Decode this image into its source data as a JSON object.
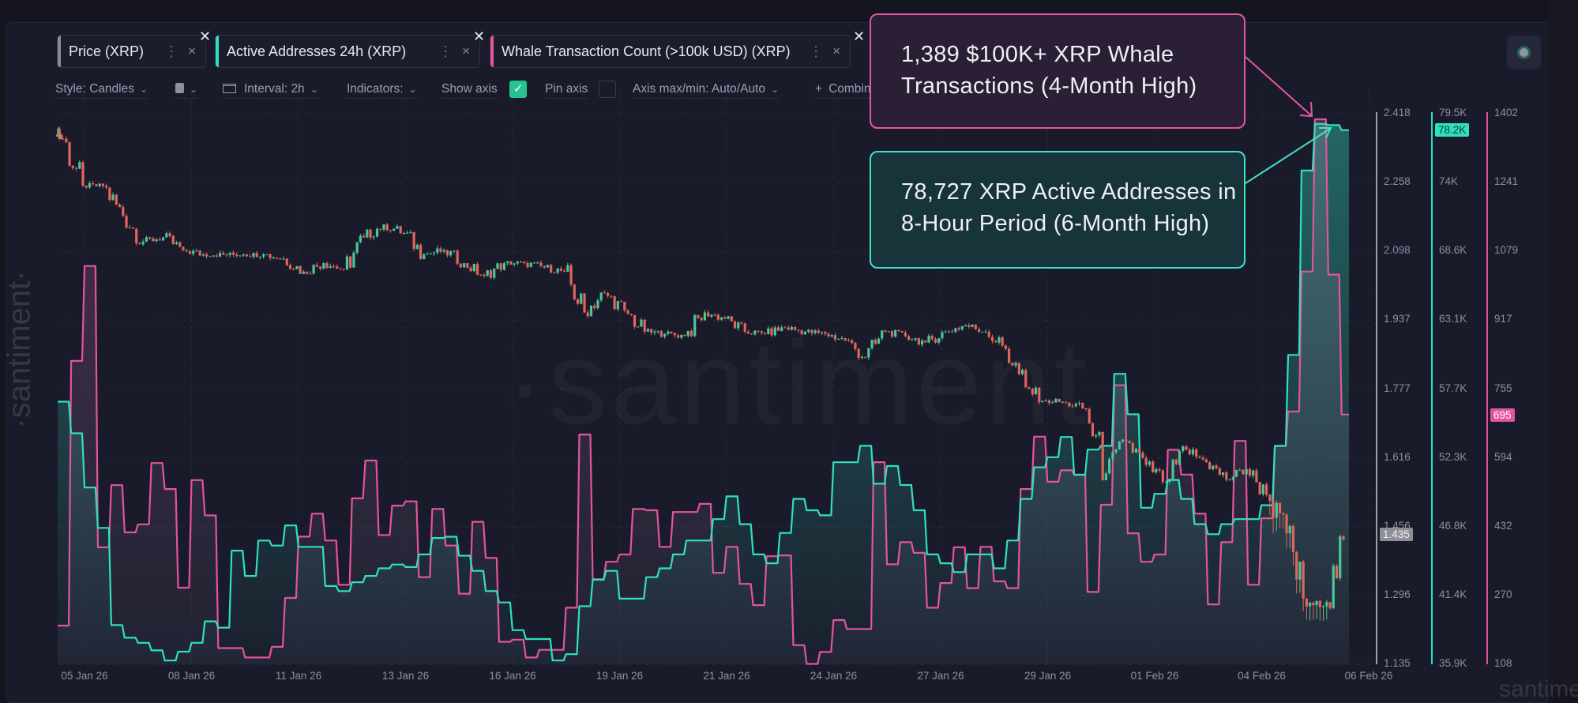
{
  "tabs": [
    {
      "label": "Price (XRP)",
      "color": "#8a8d99",
      "menu_icon": "more-vertical-icon",
      "close_icon": "close-icon"
    },
    {
      "label": "Active Addresses 24h (XRP)",
      "color": "#2fe0bf",
      "menu_icon": "more-vertical-icon",
      "close_icon": "close-icon"
    },
    {
      "label": "Whale Transaction Count (>100k USD) (XRP)",
      "color": "#e2559b",
      "menu_icon": "more-vertical-icon",
      "close_icon": "close-icon"
    }
  ],
  "toolbar": {
    "style": "Style: Candles",
    "interval": "Interval: 2h",
    "indicators": "Indicators:",
    "show_axis": "Show axis",
    "show_axis_checked": true,
    "pin_axis": "Pin axis",
    "pin_axis_checked": false,
    "axis_maxmin": "Axis max/min: Auto/Auto",
    "combine": "Combine"
  },
  "annotations": {
    "whale": {
      "line1": "1,389 $100K+ XRP Whale",
      "line2": "Transactions (4-Month High)",
      "color": "#e3579f"
    },
    "active": {
      "line1": "78,727 XRP Active Addresses in",
      "line2": "8-Hour Period (6-Month High)",
      "color": "#3fe3c3"
    }
  },
  "watermark": "·santiment",
  "side_watermark": "·santiment·",
  "corner_watermark": "santiment",
  "chart_data": {
    "type": "candlestick+step-line",
    "grid": true,
    "x_ticks": [
      "05 Jan 26",
      "08 Jan 26",
      "11 Jan 26",
      "13 Jan 26",
      "16 Jan 26",
      "19 Jan 26",
      "21 Jan 26",
      "24 Jan 26",
      "27 Jan 26",
      "29 Jan 26",
      "01 Feb 26",
      "04 Feb 26",
      "06 Feb 26"
    ],
    "axes": {
      "price": {
        "ticks": [
          "2.418",
          "2.258",
          "2.098",
          "1.937",
          "1.777",
          "1.616",
          "1.456",
          "1.296",
          "1.135"
        ],
        "range": [
          1.135,
          2.418
        ],
        "current": "1.435",
        "color": "#9a9cab"
      },
      "active": {
        "ticks": [
          "79.5K",
          "74K",
          "68.6K",
          "63.1K",
          "57.7K",
          "52.3K",
          "46.8K",
          "41.4K",
          "35.9K"
        ],
        "range": [
          35.9,
          79.5
        ],
        "current": "78.2K",
        "color": "#2fe0bf"
      },
      "whale": {
        "ticks": [
          "1402",
          "1241",
          "1079",
          "917",
          "755",
          "594",
          "432",
          "270",
          "108"
        ],
        "range": [
          108,
          1402
        ],
        "current": "695",
        "color": "#e2559b"
      }
    },
    "series": [
      {
        "name": "Price (XRP)",
        "type": "candles",
        "interval": "2h",
        "up_color": "#4cc59a",
        "down_color": "#e0665c",
        "x": [
          "2026-01-05T00:00",
          "2026-01-05T12:00",
          "2026-01-06T00:00",
          "2026-01-06T12:00",
          "2026-01-07T00:00",
          "2026-01-07T12:00",
          "2026-01-08T00:00",
          "2026-01-08T12:00",
          "2026-01-09T00:00",
          "2026-01-09T12:00",
          "2026-01-10T00:00",
          "2026-01-10T12:00",
          "2026-01-11T00:00",
          "2026-01-11T12:00",
          "2026-01-12T00:00",
          "2026-01-12T12:00",
          "2026-01-13T00:00",
          "2026-01-13T12:00",
          "2026-01-14T00:00",
          "2026-01-14T12:00",
          "2026-01-15T00:00",
          "2026-01-15T12:00",
          "2026-01-16T00:00",
          "2026-01-16T12:00",
          "2026-01-17T00:00",
          "2026-01-17T12:00",
          "2026-01-18T00:00",
          "2026-01-18T12:00",
          "2026-01-19T00:00",
          "2026-01-19T12:00",
          "2026-01-20T00:00",
          "2026-01-20T12:00",
          "2026-01-21T00:00",
          "2026-01-21T12:00",
          "2026-01-22T00:00",
          "2026-01-22T12:00",
          "2026-01-23T00:00",
          "2026-01-23T12:00",
          "2026-01-24T00:00",
          "2026-01-24T12:00",
          "2026-01-25T00:00",
          "2026-01-25T12:00",
          "2026-01-26T00:00",
          "2026-01-26T12:00",
          "2026-01-27T00:00",
          "2026-01-27T12:00",
          "2026-01-28T00:00",
          "2026-01-28T12:00",
          "2026-01-29T00:00",
          "2026-01-29T12:00",
          "2026-01-30T00:00",
          "2026-01-30T12:00",
          "2026-01-31T00:00",
          "2026-01-31T12:00",
          "2026-02-01T00:00",
          "2026-02-01T12:00",
          "2026-02-02T00:00",
          "2026-02-02T12:00",
          "2026-02-03T00:00",
          "2026-02-03T12:00",
          "2026-02-04T00:00",
          "2026-02-04T12:00",
          "2026-02-05T00:00",
          "2026-02-05T12:00",
          "2026-02-06T00:00"
        ],
        "close": [
          2.36,
          2.25,
          2.25,
          2.18,
          2.12,
          2.13,
          2.1,
          2.09,
          2.09,
          2.09,
          2.09,
          2.08,
          2.05,
          2.07,
          2.055,
          2.13,
          2.16,
          2.14,
          2.09,
          2.1,
          2.07,
          2.04,
          2.07,
          2.07,
          2.06,
          2.05,
          1.955,
          2.0,
          1.96,
          1.91,
          1.905,
          1.9,
          1.955,
          1.94,
          1.91,
          1.905,
          1.92,
          1.91,
          1.905,
          1.89,
          1.85,
          1.91,
          1.9,
          1.885,
          1.91,
          1.925,
          1.91,
          1.87,
          1.78,
          1.75,
          1.745,
          1.73,
          1.58,
          1.655,
          1.6,
          1.56,
          1.635,
          1.606,
          1.565,
          1.59,
          1.53,
          1.44,
          1.27,
          1.28,
          1.435
        ]
      },
      {
        "name": "Active Addresses 24h (XRP)",
        "type": "step-line",
        "unit": "K",
        "color": "#2fe0bf",
        "x": [
          "2026-01-04T20:00",
          "2026-01-05T04:00",
          "2026-01-05T12:00",
          "2026-01-05T20:00",
          "2026-01-06T04:00",
          "2026-01-06T12:00",
          "2026-01-06T20:00",
          "2026-01-07T04:00",
          "2026-01-07T12:00",
          "2026-01-07T20:00",
          "2026-01-08T04:00",
          "2026-01-08T12:00",
          "2026-01-08T20:00",
          "2026-01-09T04:00",
          "2026-01-09T12:00",
          "2026-01-09T20:00",
          "2026-01-10T04:00",
          "2026-01-10T12:00",
          "2026-01-10T20:00",
          "2026-01-11T04:00",
          "2026-01-11T12:00",
          "2026-01-11T20:00",
          "2026-01-12T04:00",
          "2026-01-12T12:00",
          "2026-01-12T20:00",
          "2026-01-13T04:00",
          "2026-01-13T12:00",
          "2026-01-13T20:00",
          "2026-01-14T04:00",
          "2026-01-14T12:00",
          "2026-01-14T20:00",
          "2026-01-15T04:00",
          "2026-01-15T12:00",
          "2026-01-15T20:00",
          "2026-01-16T04:00",
          "2026-01-16T12:00",
          "2026-01-16T20:00",
          "2026-01-17T04:00",
          "2026-01-17T12:00",
          "2026-01-17T20:00",
          "2026-01-18T04:00",
          "2026-01-18T12:00",
          "2026-01-18T20:00",
          "2026-01-19T04:00",
          "2026-01-19T12:00",
          "2026-01-19T20:00",
          "2026-01-20T04:00",
          "2026-01-20T12:00",
          "2026-01-20T20:00",
          "2026-01-21T04:00",
          "2026-01-21T12:00",
          "2026-01-21T20:00",
          "2026-01-22T04:00",
          "2026-01-22T12:00",
          "2026-01-22T20:00",
          "2026-01-23T04:00",
          "2026-01-23T12:00",
          "2026-01-23T20:00",
          "2026-01-24T04:00",
          "2026-01-24T12:00",
          "2026-01-24T20:00",
          "2026-01-25T04:00",
          "2026-01-25T12:00",
          "2026-01-25T20:00",
          "2026-01-26T04:00",
          "2026-01-26T12:00",
          "2026-01-26T20:00",
          "2026-01-27T04:00",
          "2026-01-27T12:00",
          "2026-01-27T20:00",
          "2026-01-28T04:00",
          "2026-01-28T12:00",
          "2026-01-28T20:00",
          "2026-01-29T04:00",
          "2026-01-29T12:00",
          "2026-01-29T20:00",
          "2026-01-30T04:00",
          "2026-01-30T12:00",
          "2026-01-30T20:00",
          "2026-01-31T04:00",
          "2026-01-31T12:00",
          "2026-01-31T20:00",
          "2026-02-01T04:00",
          "2026-02-01T12:00",
          "2026-02-01T20:00",
          "2026-02-02T04:00",
          "2026-02-02T12:00",
          "2026-02-02T20:00",
          "2026-02-03T04:00",
          "2026-02-03T12:00",
          "2026-02-03T20:00",
          "2026-02-04T04:00",
          "2026-02-04T12:00",
          "2026-02-04T20:00",
          "2026-02-05T04:00",
          "2026-02-05T12:00",
          "2026-02-05T20:00"
        ],
        "values": [
          56.7,
          54.2,
          49.9,
          46.7,
          39.0,
          38.0,
          37.6,
          37.0,
          36.2,
          36.9,
          37.6,
          39.3,
          38.8,
          44.9,
          42.9,
          45.7,
          45.3,
          46.9,
          45.2,
          45.2,
          42.1,
          41.7,
          42.4,
          42.9,
          43.5,
          43.8,
          43.6,
          44.6,
          45.9,
          46.0,
          44.5,
          43.3,
          41.7,
          40.8,
          38.6,
          37.9,
          37.9,
          36.2,
          36.7,
          40.5,
          42.6,
          43.3,
          41.1,
          41.1,
          42.8,
          43.5,
          44.6,
          45.7,
          45.7,
          47.4,
          49.2,
          47.0,
          44.6,
          43.9,
          46.3,
          49.0,
          48.1,
          47.7,
          51.9,
          51.9,
          53.2,
          50.2,
          51.6,
          50.1,
          48.1,
          44.6,
          43.9,
          43.2,
          44.6,
          44.6,
          43.5,
          45.7,
          49.0,
          51.5,
          52.3,
          53.9,
          50.9,
          52.9,
          53.2,
          58.9,
          55.7,
          48.3,
          49.4,
          50.5,
          49.0,
          47.0,
          46.2,
          47.0,
          47.4,
          47.4,
          48.5,
          53.2,
          60.4,
          75.0,
          78.7,
          78.6,
          78.2
        ]
      },
      {
        "name": "Whale Transaction Count (>100k USD) (XRP)",
        "type": "step-line",
        "color": "#e2559b",
        "values": [
          199,
          821,
          1044,
          383,
          529,
          418,
          437,
          581,
          520,
          288,
          541,
          458,
          146,
          146,
          124,
          124,
          149,
          264,
          408,
          462,
          399,
          295,
          498,
          587,
          412,
          481,
          491,
          313,
          473,
          387,
          274,
          443,
          358,
          161,
          166,
          124,
          142,
          142,
          241,
          648,
          308,
          349,
          366,
          473,
          470,
          384,
          466,
          466,
          485,
          323,
          384,
          297,
          247,
          362,
          364,
          153,
          109,
          137,
          212,
          191,
          191,
          583,
          343,
          395,
          370,
          241,
          299,
          383,
          287,
          384,
          303,
          287,
          520,
          643,
          537,
          564,
          554,
          278,
          483,
          764,
          416,
          349,
          366,
          612,
          554,
          462,
          249,
          395,
          633,
          295,
          451,
          621,
          702,
          1031,
          1389,
          1024,
          695
        ]
      }
    ]
  }
}
